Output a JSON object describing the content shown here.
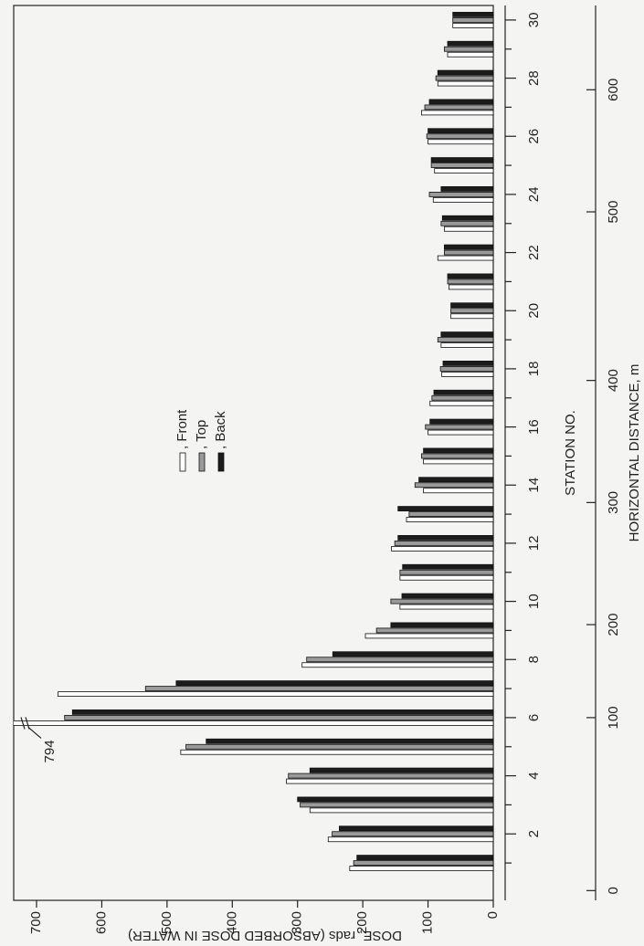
{
  "chart_data": {
    "type": "bar",
    "x_title": "STATION NO.",
    "y_title": "DOSE, rads (ABSORBED DOSE IN WATER)",
    "categories": [
      null,
      2,
      null,
      4,
      null,
      6,
      null,
      8,
      null,
      10,
      null,
      12,
      null,
      14,
      null,
      16,
      null,
      18,
      null,
      20,
      null,
      22,
      null,
      24,
      null,
      26,
      null,
      28,
      null,
      30
    ],
    "series": [
      {
        "name": ", Front",
        "color": "#ffffff",
        "values": [
          220,
          253,
          281,
          317,
          479,
          794,
          667,
          293,
          196,
          143,
          143,
          156,
          133,
          107,
          107,
          100,
          97,
          79,
          80,
          65,
          68,
          85,
          75,
          92,
          90,
          100,
          110,
          85,
          70,
          62
        ],
        "value_labels": [
          null,
          null,
          null,
          null,
          null,
          "794",
          null,
          null,
          null,
          null,
          null,
          null,
          null,
          null,
          null,
          null,
          null,
          null,
          null,
          null,
          null,
          null,
          null,
          null,
          null,
          null,
          null,
          null,
          null,
          null
        ]
      },
      {
        "name": ", Top",
        "color": "#9a9a9a",
        "values": [
          214,
          247,
          296,
          314,
          471,
          657,
          533,
          286,
          179,
          157,
          143,
          151,
          129,
          120,
          110,
          104,
          94,
          81,
          85,
          65,
          70,
          75,
          80,
          98,
          95,
          102,
          105,
          88,
          75,
          62
        ]
      },
      {
        "name": ", Back",
        "color": "#1c1c1c",
        "values": [
          209,
          236,
          300,
          281,
          440,
          645,
          486,
          246,
          157,
          140,
          139,
          146,
          146,
          114,
          107,
          97,
          91,
          77,
          80,
          65,
          70,
          75,
          78,
          80,
          95,
          100,
          98,
          85,
          70,
          62
        ]
      }
    ],
    "ylim": [
      0,
      735
    ],
    "yticks": [
      0,
      100,
      200,
      300,
      400,
      500,
      600,
      700
    ],
    "distance_axis": {
      "title": "HORIZONTAL DISTANCE, m",
      "ticks": [
        0,
        100,
        200,
        300,
        400,
        500,
        600
      ],
      "at_station": [
        0.05,
        6,
        9.2,
        13.4,
        17.6,
        23.4,
        27.6
      ]
    }
  }
}
